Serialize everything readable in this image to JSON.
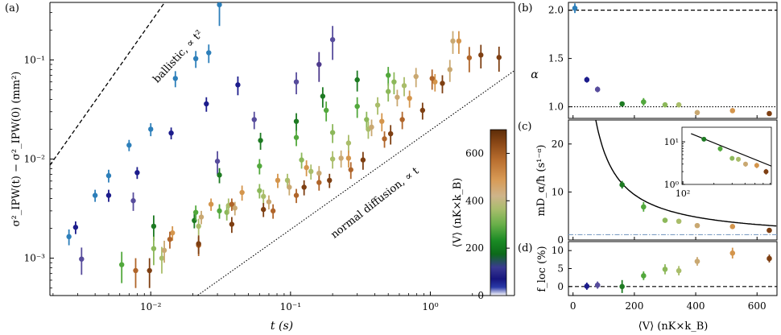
{
  "panel_labels": {
    "a": "(a)",
    "b": "(b)",
    "c": "(c)",
    "d": "(d)"
  },
  "annotations": {
    "ballistic": "ballistic, ∝ t²",
    "diffusion": "normal diffusion, ∝ t"
  },
  "colorbar": {
    "label": "⟨V⟩ (nK×k_B)",
    "ticks": [
      "0",
      "200",
      "400",
      "600"
    ],
    "range": [
      0,
      700
    ]
  },
  "chart_data": [
    {
      "type": "scatter",
      "panel": "a",
      "xlabel": "t (s)",
      "ylabel": "σ²_IPW(t) − σ²_IPW(0) (mm²)",
      "xscale": "log",
      "yscale": "log",
      "xlim": [
        0.0019,
        4.0
      ],
      "ylim": [
        0.00042,
        0.38
      ],
      "xticks": [
        "10⁻²",
        "10⁻¹",
        "10⁰"
      ],
      "yticks": [
        "10⁻³",
        "10⁻²",
        "10⁻¹"
      ],
      "series": [
        {
          "color": "#2d7fba",
          "points": [
            [
              0.0026,
              0.00165,
              0.0003
            ],
            [
              0.004,
              0.0043,
              0.0006
            ],
            [
              0.005,
              0.0068,
              0.001
            ],
            [
              0.007,
              0.0138,
              0.0018
            ],
            [
              0.01,
              0.02,
              0.003
            ],
            [
              0.015,
              0.065,
              0.012
            ],
            [
              0.021,
              0.103,
              0.02
            ],
            [
              0.026,
              0.118,
              0.025
            ],
            [
              0.031,
              0.36,
              0.14
            ]
          ]
        },
        {
          "color": "#1c1c8c",
          "points": [
            [
              0.0029,
              0.00205,
              0.0003
            ],
            [
              0.005,
              0.0043,
              0.0006
            ],
            [
              0.008,
              0.0073,
              0.001
            ],
            [
              0.014,
              0.0183,
              0.0025
            ],
            [
              0.025,
              0.036,
              0.006
            ],
            [
              0.042,
              0.056,
              0.012
            ]
          ]
        },
        {
          "color": "#574c9c",
          "points": [
            [
              0.0032,
              0.00098,
              0.0003
            ],
            [
              0.0075,
              0.0038,
              0.0008
            ],
            [
              0.03,
              0.0095,
              0.0025
            ],
            [
              0.055,
              0.025,
              0.005
            ],
            [
              0.11,
              0.06,
              0.015
            ],
            [
              0.2,
              0.16,
              0.06
            ]
          ]
        },
        {
          "color": "#4d3a8c",
          "points": [
            [
              0.16,
              0.09,
              0.03
            ]
          ]
        },
        {
          "color": "#1d7a22",
          "points": [
            [
              0.0105,
              0.0021,
              0.0006
            ],
            [
              0.0205,
              0.0024,
              0.0004
            ],
            [
              0.031,
              0.0069,
              0.0012
            ],
            [
              0.061,
              0.0154,
              0.003
            ],
            [
              0.11,
              0.024,
              0.005
            ],
            [
              0.17,
              0.043,
              0.01
            ],
            [
              0.3,
              0.063,
              0.015
            ]
          ]
        },
        {
          "color": "#52a83c",
          "points": [
            [
              0.0062,
              0.00086,
              0.0003
            ],
            [
              0.021,
              0.0029,
              0.0005
            ],
            [
              0.031,
              0.003,
              0.0005
            ],
            [
              0.06,
              0.0085,
              0.0015
            ],
            [
              0.11,
              0.0165,
              0.003
            ],
            [
              0.18,
              0.031,
              0.007
            ],
            [
              0.3,
              0.034,
              0.008
            ],
            [
              0.5,
              0.07,
              0.015
            ]
          ]
        },
        {
          "color": "#8cb85a",
          "points": [
            [
              0.0105,
              0.00125,
              0.0004
            ],
            [
              0.035,
              0.0029,
              0.0005
            ],
            [
              0.06,
              0.0048,
              0.0008
            ],
            [
              0.12,
              0.0098,
              0.0018
            ],
            [
              0.2,
              0.0185,
              0.004
            ],
            [
              0.35,
              0.025,
              0.005
            ],
            [
              0.5,
              0.048,
              0.01
            ],
            [
              0.55,
              0.06,
              0.015
            ]
          ]
        },
        {
          "color": "#a9bd6a",
          "points": [
            [
              0.012,
              0.001,
              0.0003
            ],
            [
              0.022,
              0.0021,
              0.0004
            ],
            [
              0.036,
              0.0034,
              0.0006
            ],
            [
              0.064,
              0.0042,
              0.0007
            ],
            [
              0.095,
              0.0061,
              0.001
            ],
            [
              0.14,
              0.0075,
              0.0013
            ],
            [
              0.2,
              0.01,
              0.002
            ],
            [
              0.26,
              0.0145,
              0.003
            ],
            [
              0.36,
              0.02,
              0.004
            ],
            [
              0.42,
              0.035,
              0.007
            ],
            [
              0.65,
              0.055,
              0.012
            ]
          ]
        },
        {
          "color": "#c9a871",
          "points": [
            [
              0.0125,
              0.0012,
              0.0003
            ],
            [
              0.023,
              0.0026,
              0.0004
            ],
            [
              0.04,
              0.0032,
              0.0005
            ],
            [
              0.07,
              0.0037,
              0.0006
            ],
            [
              0.098,
              0.0052,
              0.0009
            ],
            [
              0.16,
              0.0072,
              0.0013
            ],
            [
              0.23,
              0.0102,
              0.002
            ],
            [
              0.38,
              0.021,
              0.004
            ],
            [
              0.58,
              0.042,
              0.008
            ],
            [
              0.79,
              0.068,
              0.015
            ],
            [
              1.38,
              0.08,
              0.02
            ],
            [
              1.45,
              0.155,
              0.04
            ]
          ]
        },
        {
          "color": "#d4954c",
          "points": [
            [
              0.0143,
              0.0018,
              0.0003
            ],
            [
              0.027,
              0.0035,
              0.0005
            ],
            [
              0.045,
              0.0046,
              0.0008
            ],
            [
              0.081,
              0.0061,
              0.001
            ],
            [
              0.13,
              0.0082,
              0.0015
            ],
            [
              0.26,
              0.0102,
              0.002
            ],
            [
              0.45,
              0.024,
              0.005
            ],
            [
              0.71,
              0.041,
              0.008
            ],
            [
              1.08,
              0.06,
              0.012
            ],
            [
              1.6,
              0.155,
              0.04
            ]
          ]
        },
        {
          "color": "#b0652a",
          "points": [
            [
              0.0078,
              0.00075,
              0.00025
            ],
            [
              0.0137,
              0.00155,
              0.0003
            ],
            [
              0.022,
              0.00135,
              0.0003
            ],
            [
              0.038,
              0.0035,
              0.0005
            ],
            [
              0.075,
              0.003,
              0.0005
            ],
            [
              0.11,
              0.0043,
              0.0007
            ],
            [
              0.16,
              0.0058,
              0.001
            ],
            [
              0.27,
              0.0078,
              0.0015
            ],
            [
              0.47,
              0.016,
              0.003
            ],
            [
              0.63,
              0.025,
              0.005
            ],
            [
              1.03,
              0.065,
              0.015
            ],
            [
              1.9,
              0.105,
              0.03
            ]
          ]
        },
        {
          "color": "#7e3f12",
          "points": [
            [
              0.0098,
              0.00075,
              0.00025
            ],
            [
              0.022,
              0.0014,
              0.0003
            ],
            [
              0.038,
              0.0022,
              0.0004
            ],
            [
              0.064,
              0.0031,
              0.0005
            ],
            [
              0.125,
              0.0052,
              0.0009
            ],
            [
              0.19,
              0.0061,
              0.001
            ],
            [
              0.33,
              0.0098,
              0.002
            ],
            [
              0.52,
              0.018,
              0.004
            ],
            [
              0.88,
              0.031,
              0.006
            ],
            [
              1.22,
              0.058,
              0.012
            ],
            [
              2.3,
              0.112,
              0.03
            ],
            [
              3.1,
              0.106,
              0.03
            ]
          ]
        }
      ]
    },
    {
      "type": "scatter",
      "panel": "b",
      "ylabel": "α",
      "ylim": [
        0.88,
        2.08
      ],
      "xlim": [
        -15,
        665
      ],
      "yticks": [
        "1.0",
        "1.5",
        "2.0"
      ],
      "reference_lines": [
        2.0,
        1.0
      ],
      "points": [
        [
          6,
          2.02,
          0.05,
          "#2d7fba"
        ],
        [
          45,
          1.28,
          0.03,
          "#1c1c8c"
        ],
        [
          80,
          1.18,
          0.03,
          "#574c9c"
        ],
        [
          160,
          1.03,
          0.02,
          "#1d7a22"
        ],
        [
          230,
          1.05,
          0.04,
          "#52a83c"
        ],
        [
          300,
          1.02,
          0.02,
          "#8cb85a"
        ],
        [
          345,
          1.02,
          0.02,
          "#a9bd6a"
        ],
        [
          405,
          0.94,
          0.02,
          "#c9a871"
        ],
        [
          520,
          0.96,
          0.02,
          "#d4954c"
        ],
        [
          640,
          0.93,
          0.02,
          "#7e3f12"
        ]
      ]
    },
    {
      "type": "scatter",
      "panel": "c",
      "ylabel": "mD_α/ħ (s¹⁻ᵅ)",
      "ylim": [
        0,
        25
      ],
      "xlim": [
        -15,
        665
      ],
      "yticks": [
        "0",
        "10",
        "20"
      ],
      "fit": {
        "form": "power_law",
        "A": 1700,
        "exponent": -0.98
      },
      "baseline": 1.1,
      "points": [
        [
          160,
          11.5,
          0.8,
          "#1d7a22"
        ],
        [
          230,
          6.9,
          1.0,
          "#52a83c"
        ],
        [
          300,
          4.1,
          0.5,
          "#8cb85a"
        ],
        [
          345,
          3.9,
          0.5,
          "#a9bd6a"
        ],
        [
          405,
          3.0,
          0.4,
          "#c9a871"
        ],
        [
          520,
          2.8,
          0.4,
          "#d4954c"
        ],
        [
          640,
          2.0,
          0.3,
          "#7e3f12"
        ]
      ],
      "inset": {
        "xscale": "log",
        "yscale": "log",
        "xticks": [
          "10²"
        ],
        "yticks": [
          "10⁰",
          "10¹"
        ],
        "xlim": [
          98,
          720
        ],
        "ylim": [
          1.0,
          22
        ]
      }
    },
    {
      "type": "scatter",
      "panel": "d",
      "ylabel": "f_loc (%)",
      "xlabel": "⟨V⟩ (nK×k_B)",
      "ylim": [
        -2.5,
        12.5
      ],
      "xlim": [
        -15,
        665
      ],
      "yticks": [
        "0",
        "5",
        "10"
      ],
      "xticks": [
        "0",
        "200",
        "400",
        "600"
      ],
      "reference_lines": [
        0
      ],
      "points": [
        [
          45,
          0.1,
          1.0,
          "#1c1c8c"
        ],
        [
          80,
          0.4,
          1.0,
          "#574c9c"
        ],
        [
          160,
          0.0,
          1.8,
          "#1d7a22"
        ],
        [
          230,
          3.0,
          1.2,
          "#52a83c"
        ],
        [
          300,
          4.8,
          1.4,
          "#8cb85a"
        ],
        [
          345,
          4.4,
          1.3,
          "#a9bd6a"
        ],
        [
          405,
          7.0,
          1.2,
          "#c9a871"
        ],
        [
          520,
          9.3,
          1.5,
          "#d4954c"
        ],
        [
          640,
          7.8,
          1.1,
          "#7e3f12"
        ]
      ]
    }
  ]
}
